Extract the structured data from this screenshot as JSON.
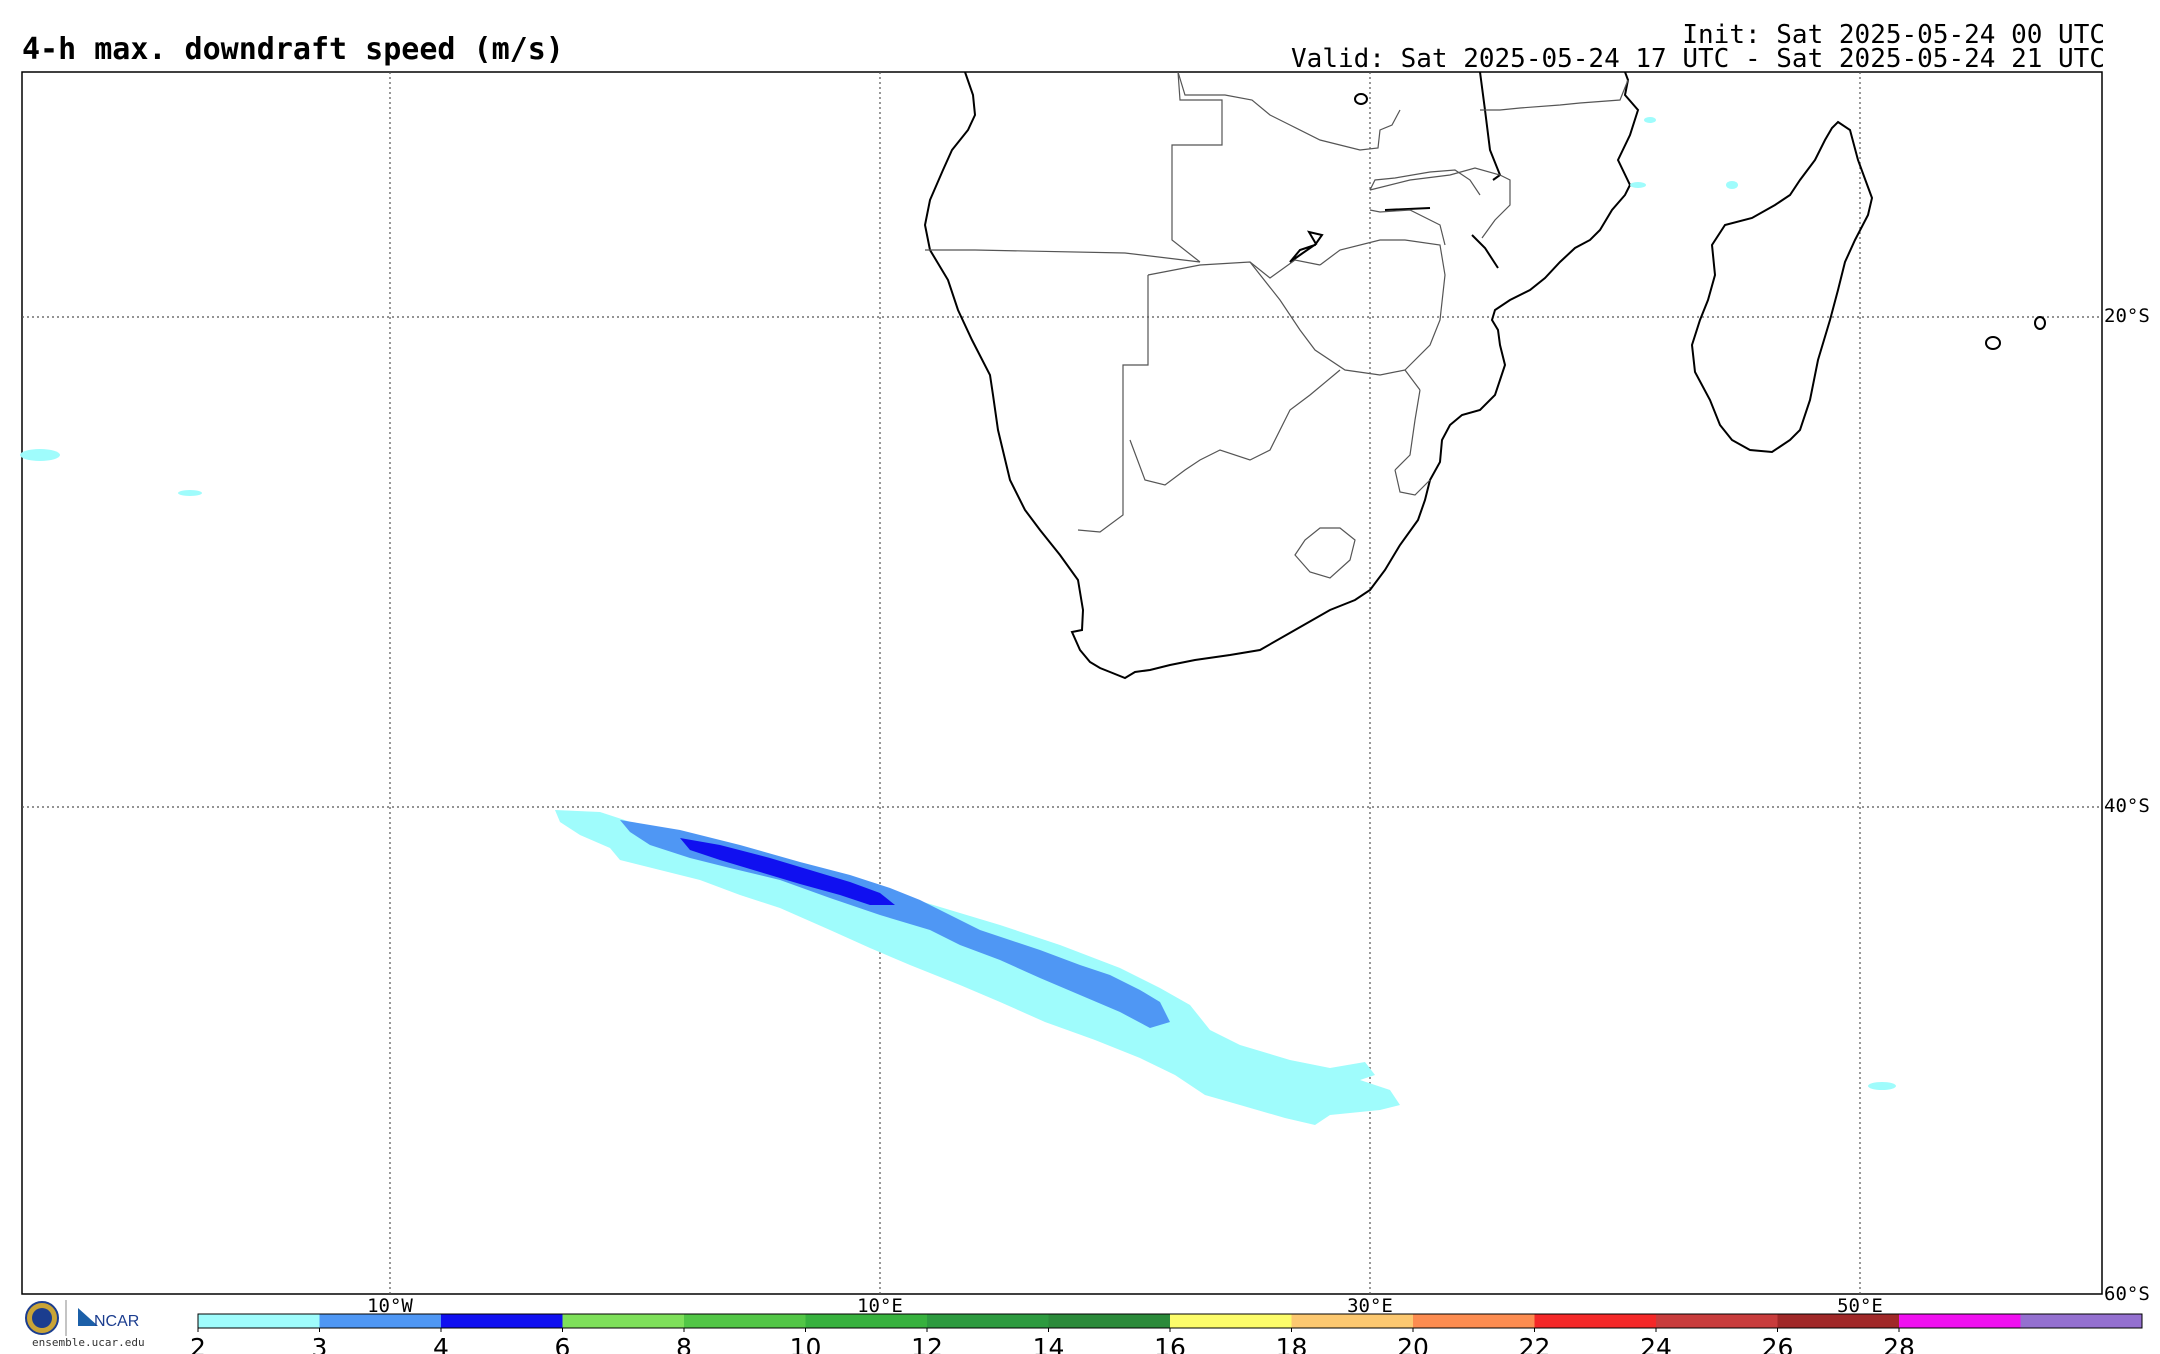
{
  "header": {
    "title": "4-h max. downdraft speed (m/s)",
    "init": "Init: Sat 2025-05-24 00 UTC",
    "valid": "Valid: Sat 2025-05-24 17 UTC - Sat 2025-05-24 21 UTC"
  },
  "map": {
    "lon_labels": [
      "10°W",
      "10°E",
      "30°E",
      "50°E"
    ],
    "lat_labels": [
      "20°S",
      "40°S",
      "60°S"
    ]
  },
  "colorbar": {
    "ticks": [
      "2",
      "3",
      "4",
      "6",
      "8",
      "10",
      "12",
      "14",
      "16",
      "18",
      "20",
      "22",
      "24",
      "26",
      "28"
    ],
    "colors": [
      "#9ffcfc",
      "#4f97f4",
      "#1010f0",
      "#7ee05a",
      "#52c646",
      "#37b13e",
      "#2d9a3f",
      "#2b8a3a",
      "#fcfc6a",
      "#fcc870",
      "#fc8c50",
      "#f42828",
      "#c83c3c",
      "#a02828",
      "#f010f0",
      "#9470d0"
    ]
  },
  "footer": {
    "logo_text": "NCAR",
    "url": "ensemble.ucar.edu"
  }
}
